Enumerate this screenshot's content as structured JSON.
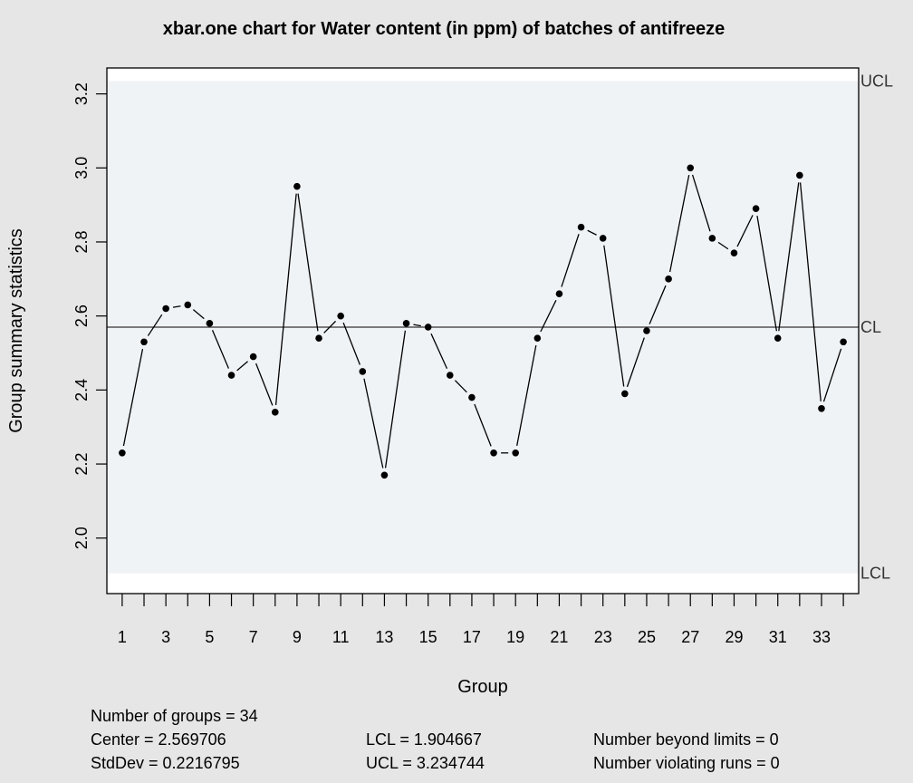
{
  "chart_data": {
    "type": "line",
    "title": "xbar.one chart for Water content (in ppm) of batches of antifreeze",
    "xlabel": "Group",
    "ylabel": "Group summary statistics",
    "x": [
      1,
      2,
      3,
      4,
      5,
      6,
      7,
      8,
      9,
      10,
      11,
      12,
      13,
      14,
      15,
      16,
      17,
      18,
      19,
      20,
      21,
      22,
      23,
      24,
      25,
      26,
      27,
      28,
      29,
      30,
      31,
      32,
      33,
      34
    ],
    "values": [
      2.23,
      2.53,
      2.62,
      2.63,
      2.58,
      2.44,
      2.49,
      2.34,
      2.95,
      2.54,
      2.6,
      2.45,
      2.17,
      2.58,
      2.57,
      2.44,
      2.38,
      2.23,
      2.23,
      2.54,
      2.66,
      2.84,
      2.81,
      2.39,
      2.56,
      2.7,
      3.0,
      2.81,
      2.77,
      2.89,
      2.54,
      2.98,
      2.35,
      2.53
    ],
    "xlim": [
      0.3,
      34.7
    ],
    "ylim": [
      1.85,
      3.27
    ],
    "x_ticks": [
      1,
      2,
      3,
      4,
      5,
      6,
      7,
      8,
      9,
      10,
      11,
      12,
      13,
      14,
      15,
      16,
      17,
      18,
      19,
      20,
      21,
      22,
      23,
      24,
      25,
      26,
      27,
      28,
      29,
      30,
      31,
      32,
      33,
      34
    ],
    "x_tick_labels": [
      "1",
      "3",
      "5",
      "7",
      "9",
      "11",
      "13",
      "15",
      "17",
      "19",
      "21",
      "23",
      "25",
      "27",
      "29",
      "31",
      "33"
    ],
    "y_ticks": [
      "2.0",
      "2.2",
      "2.4",
      "2.6",
      "2.8",
      "3.0",
      "3.2"
    ],
    "center": 2.569706,
    "lcl": 1.904667,
    "ucl": 3.234744,
    "limit_labels": {
      "ucl": "UCL",
      "cl": "CL",
      "lcl": "LCL"
    },
    "grid": false,
    "colors": {
      "background": "#e6e6e6",
      "limits_band": "#f0f3f6",
      "line": "#000000"
    }
  },
  "stats": {
    "groups": "Number of groups = 34",
    "center": "Center = 2.569706",
    "stddev": "StdDev = 0.2216795",
    "lcl": "LCL = 1.904667",
    "ucl": "UCL = 3.234744",
    "beyond": "Number beyond limits = 0",
    "runs": "Number violating runs = 0"
  }
}
